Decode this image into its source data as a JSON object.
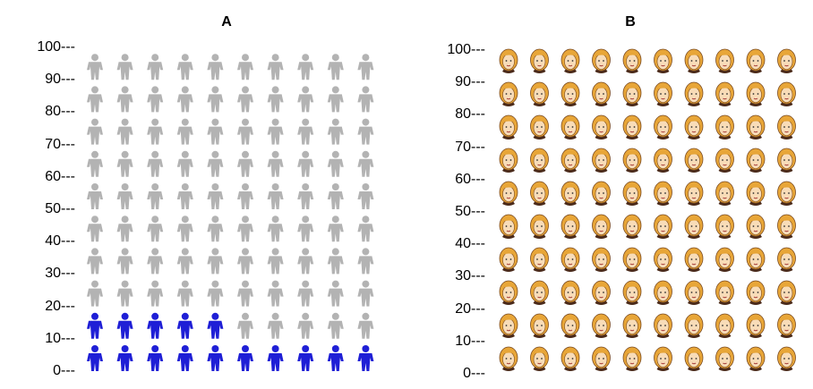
{
  "panels": [
    {
      "id": "A",
      "title": "A",
      "y_ticks": [
        "100---",
        "90---",
        "80---",
        "70---",
        "60---",
        "50---",
        "40---",
        "30---",
        "20---",
        "10---",
        "0---"
      ],
      "icon": "person-pictogram-icon",
      "grid": {
        "rows": 10,
        "cols": 10
      },
      "highlighted_count": 15,
      "colors": {
        "highlighted": "#1f1fd6",
        "default": "#b3b3b3"
      }
    },
    {
      "id": "B",
      "title": "B",
      "y_ticks": [
        "100---",
        "90---",
        "80---",
        "70---",
        "60---",
        "50---",
        "40---",
        "30---",
        "20---",
        "10---",
        "0---"
      ],
      "icon": "woman-face-icon",
      "grid": {
        "rows": 10,
        "cols": 10
      },
      "highlighted_count": 0,
      "colors": {
        "hair": "#e8a638",
        "face": "#f8dcb8",
        "outline": "#7a4a20",
        "collar": "#4a2a1a"
      }
    }
  ]
}
